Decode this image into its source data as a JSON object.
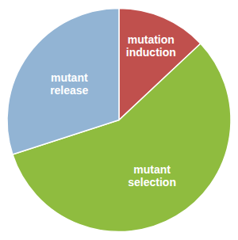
{
  "chart_data": {
    "type": "pie",
    "categories": [
      "mutation\ninduction",
      "mutant\nselection",
      "mutant\nrelease"
    ],
    "values": [
      13,
      57,
      30
    ],
    "colors": [
      "#c0504d",
      "#8fbc3f",
      "#92b4d4"
    ]
  }
}
